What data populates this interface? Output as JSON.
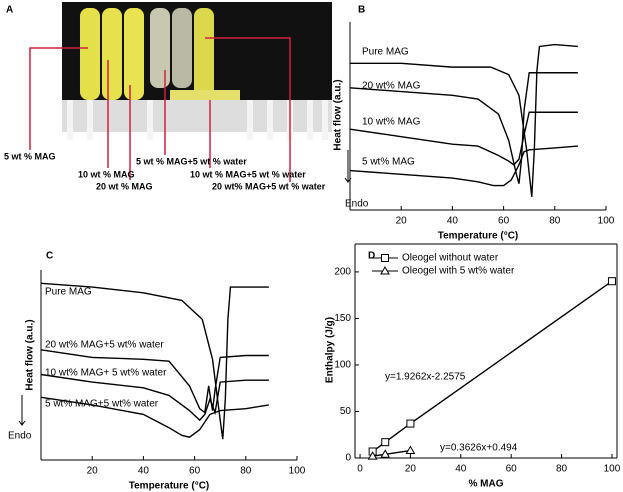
{
  "panel_a": {
    "label": "A",
    "annotations": [
      "5 wt % MAG",
      "10 wt % MAG",
      "20 wt % MAG",
      "5 wt % MAG+5 wt % water",
      "10 wt % MAG+5 wt % water",
      "20 wt% MAG+5 wt % water"
    ]
  },
  "chart_data": [
    {
      "type": "line",
      "panel_label": "B",
      "xlabel": "Temperature (°C)",
      "ylabel": "Heat flow (a.u.)",
      "endo_label": "Endo",
      "xlim": [
        0,
        100
      ],
      "xticks": [
        20,
        40,
        60,
        80,
        100
      ],
      "ylim": [
        0,
        100
      ],
      "series": [
        {
          "name": "Pure MAG",
          "color": "#000000",
          "x": [
            0,
            20,
            40,
            55,
            62,
            66,
            69,
            71,
            72,
            73,
            74,
            80,
            89
          ],
          "values": [
            78,
            78,
            76,
            76,
            72,
            61,
            32,
            7,
            32,
            74,
            87,
            88,
            87
          ]
        },
        {
          "name": "20 wt% MAG",
          "color": "#000000",
          "x": [
            0,
            20,
            40,
            50,
            58,
            62,
            65,
            66,
            67,
            68,
            70,
            80,
            89
          ],
          "values": [
            65,
            63,
            61,
            59,
            51,
            37,
            19,
            14,
            27,
            53,
            73,
            73,
            73
          ]
        },
        {
          "name": "10 wt% MAG",
          "color": "#000000",
          "x": [
            0,
            20,
            40,
            50,
            58,
            62,
            64,
            66,
            68,
            70,
            80,
            89
          ],
          "values": [
            43,
            39,
            35,
            34,
            29,
            26,
            24,
            27,
            40,
            52,
            52,
            52
          ]
        },
        {
          "name": "5 wt% MAG",
          "color": "#000000",
          "x": [
            0,
            20,
            40,
            50,
            56,
            60,
            63,
            66,
            68,
            70,
            80,
            89
          ],
          "values": [
            21,
            19,
            17,
            15,
            13,
            13,
            16,
            24,
            31,
            32,
            33,
            34
          ]
        }
      ]
    },
    {
      "type": "line",
      "panel_label": "C",
      "xlabel": "Temperature (°C)",
      "ylabel": "Heat flow (a.u.)",
      "endo_label": "Endo",
      "xlim": [
        0,
        100
      ],
      "xticks": [
        20,
        40,
        60,
        80,
        100
      ],
      "ylim": [
        0,
        100
      ],
      "series": [
        {
          "name": "Pure MAG",
          "color": "#000000",
          "x": [
            0,
            20,
            40,
            55,
            63,
            67,
            70,
            71,
            72,
            73,
            74,
            80,
            89
          ],
          "values": [
            93,
            91,
            88,
            84,
            74,
            53,
            21,
            11,
            32,
            74,
            91,
            91,
            91
          ]
        },
        {
          "name": "20 wt% MAG+5 wt% water",
          "color": "#000000",
          "x": [
            0,
            20,
            40,
            50,
            58,
            62,
            64,
            65.5,
            67,
            68,
            70,
            80,
            89
          ],
          "values": [
            58,
            54,
            53,
            52,
            39,
            27,
            25,
            39,
            26,
            37,
            54,
            55,
            55
          ]
        },
        {
          "name": "10 wt% MAG+ 5 wt% water",
          "color": "#000000",
          "x": [
            0,
            20,
            40,
            50,
            58,
            62,
            64,
            66,
            68,
            70,
            80,
            89
          ],
          "values": [
            45,
            41,
            38,
            34,
            26,
            21,
            24,
            32,
            25,
            41,
            42,
            42
          ]
        },
        {
          "name": "5 wt% MAG+5 wt% water",
          "color": "#000000",
          "x": [
            0,
            20,
            40,
            50,
            55,
            58,
            62,
            66,
            70,
            80,
            89
          ],
          "values": [
            33,
            29,
            24,
            17,
            13,
            12,
            16,
            24,
            26,
            27,
            29
          ]
        }
      ]
    },
    {
      "type": "scatter",
      "panel_label": "D",
      "xlabel": "% MAG",
      "ylabel": "Enthalpy (J/g)",
      "xlim": [
        -2,
        102
      ],
      "xticks": [
        0,
        20,
        40,
        60,
        80,
        100
      ],
      "ylim": [
        0,
        230
      ],
      "yticks": [
        0,
        50,
        100,
        150,
        200
      ],
      "annotations": [
        "y=1.9262x-2.2575",
        "y=0.3626x+0.494"
      ],
      "series": [
        {
          "name": "Oleogel without water",
          "color": "#000000",
          "marker": "square",
          "x": [
            5,
            10,
            20,
            100
          ],
          "values": [
            7,
            17,
            37,
            190
          ]
        },
        {
          "name": "Oleogel with 5 wt% water",
          "color": "#000000",
          "marker": "triangle",
          "x": [
            5,
            10,
            20
          ],
          "values": [
            2,
            4,
            8
          ]
        }
      ]
    }
  ]
}
